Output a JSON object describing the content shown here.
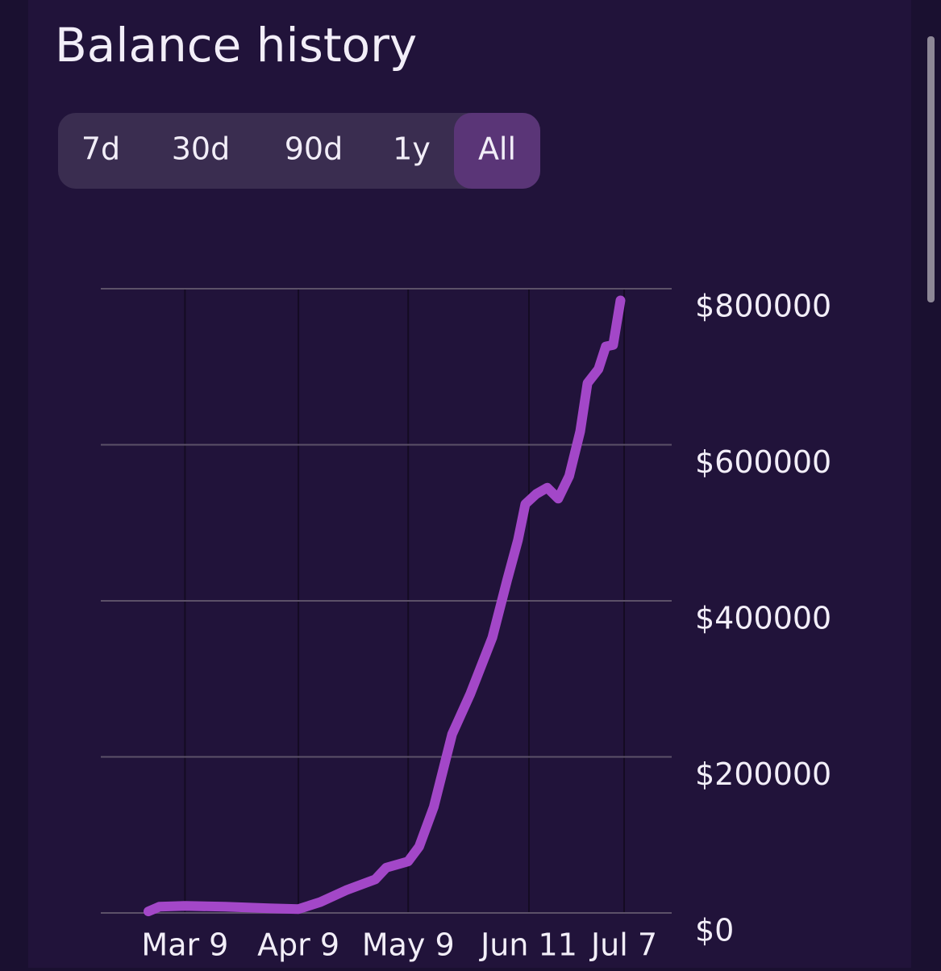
{
  "header": {
    "title": "Balance history"
  },
  "tabs": [
    "7d",
    "30d",
    "90d",
    "1y",
    "All"
  ],
  "selected_tab": 4,
  "chart_data": {
    "type": "line",
    "color": "#a347c8",
    "grid": true,
    "x": [
      "Feb 27",
      "Mar 2",
      "Mar 9",
      "Mar 20",
      "Apr 1",
      "Apr 9",
      "Apr 15",
      "Apr 22",
      "Apr 30",
      "May 3",
      "May 9",
      "May 12",
      "May 16",
      "May 21",
      "May 26",
      "Jun 1",
      "Jun 5",
      "Jun 8",
      "Jun 10",
      "Jun 13",
      "Jun 16",
      "Jun 19",
      "Jun 22",
      "Jun 25",
      "Jun 27",
      "Jun 30",
      "Jul 2",
      "Jul 4",
      "Jul 6"
    ],
    "values": [
      2000,
      8000,
      9000,
      8000,
      6000,
      5000,
      14000,
      29000,
      43000,
      58000,
      66000,
      85000,
      136000,
      229000,
      281000,
      353000,
      426000,
      478000,
      524000,
      537000,
      545000,
      531000,
      560000,
      617000,
      679000,
      697000,
      726000,
      728000,
      785000
    ],
    "xlim": [
      "Feb 14",
      "Jul 20"
    ],
    "xticks": [
      "Mar 9",
      "Apr 9",
      "May 9",
      "Jun 11",
      "Jul 7"
    ],
    "ylim": [
      0,
      800000
    ],
    "yticks": [
      {
        "value": 0,
        "label": "$0"
      },
      {
        "value": 200000,
        "label": "$200000"
      },
      {
        "value": 400000,
        "label": "$400000"
      },
      {
        "value": 600000,
        "label": "$600000"
      },
      {
        "value": 800000,
        "label": "$800000"
      }
    ]
  }
}
